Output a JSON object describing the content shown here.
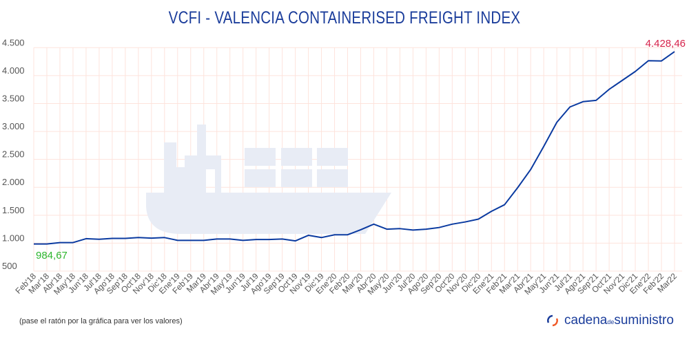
{
  "title": "VCFI - VALENCIA CONTAINERISED FREIGHT INDEX",
  "note": "(pase el ratón por la gráfica para ver los valores)",
  "brand": {
    "name_1": "cadena",
    "name_de": "de",
    "name_2": "suministro",
    "icon": "cycle-arrows-icon"
  },
  "colors": {
    "line": "#0a3aa0",
    "title": "#1b3d9b",
    "first_label": "#2db52d",
    "last_label": "#d6224a",
    "grid": "#fde3dc",
    "ship": "#e8ecf5"
  },
  "chart_data": {
    "type": "line",
    "title": "VCFI - VALENCIA CONTAINERISED FREIGHT INDEX",
    "xlabel": "",
    "ylabel": "",
    "ylim": [
      500,
      4500
    ],
    "yticks": [
      "500",
      "1.000",
      "1.500",
      "2.000",
      "2.500",
      "3.000",
      "3.500",
      "4.000",
      "4.500"
    ],
    "ytick_values": [
      500,
      1000,
      1500,
      2000,
      2500,
      3000,
      3500,
      4000,
      4500
    ],
    "grid": true,
    "legend": "none",
    "categories": [
      "Feb'18",
      "Mar'18",
      "Abr'18",
      "May'18",
      "Jun'18",
      "Jul'18",
      "Ago'18",
      "Sep'18",
      "Oct'18",
      "Nov'18",
      "Dic'18",
      "Ene'19",
      "Feb'19",
      "Mar19",
      "Abr'19",
      "May'19",
      "Jun'19",
      "Jul'19",
      "Ago'19",
      "Sep'19",
      "Oct'19",
      "Nov'19",
      "Dic'19",
      "Ene'20",
      "Feb'20",
      "Mar'20",
      "Abr'20",
      "May'20",
      "Jun'20",
      "Jul'20",
      "Ago'20",
      "Sep'20",
      "Oct'20",
      "Nov'20",
      "Dic'20",
      "Ene'21",
      "Feb'21",
      "Mar'21",
      "Abr'21",
      "May'21",
      "Jun'21",
      "Jul'21",
      "Ago'21",
      "Sep'21",
      "Oct'21",
      "Nov'21",
      "Dic'21",
      "Ene'22",
      "Feb'22",
      "Mar22"
    ],
    "values": [
      984.67,
      985,
      1010,
      1010,
      1080,
      1070,
      1085,
      1085,
      1100,
      1090,
      1100,
      1050,
      1050,
      1050,
      1075,
      1075,
      1050,
      1065,
      1065,
      1075,
      1040,
      1140,
      1100,
      1150,
      1150,
      1240,
      1340,
      1250,
      1260,
      1235,
      1250,
      1280,
      1340,
      1380,
      1430,
      1570,
      1688,
      1992,
      2319,
      2733,
      3164,
      3438,
      3533,
      3557,
      3754,
      3914,
      4074,
      4267,
      4262,
      4428.46
    ],
    "annotations": [
      {
        "label": "984,67",
        "category": "Feb'18"
      },
      {
        "label": "4.428,46",
        "category": "Mar22"
      }
    ]
  }
}
